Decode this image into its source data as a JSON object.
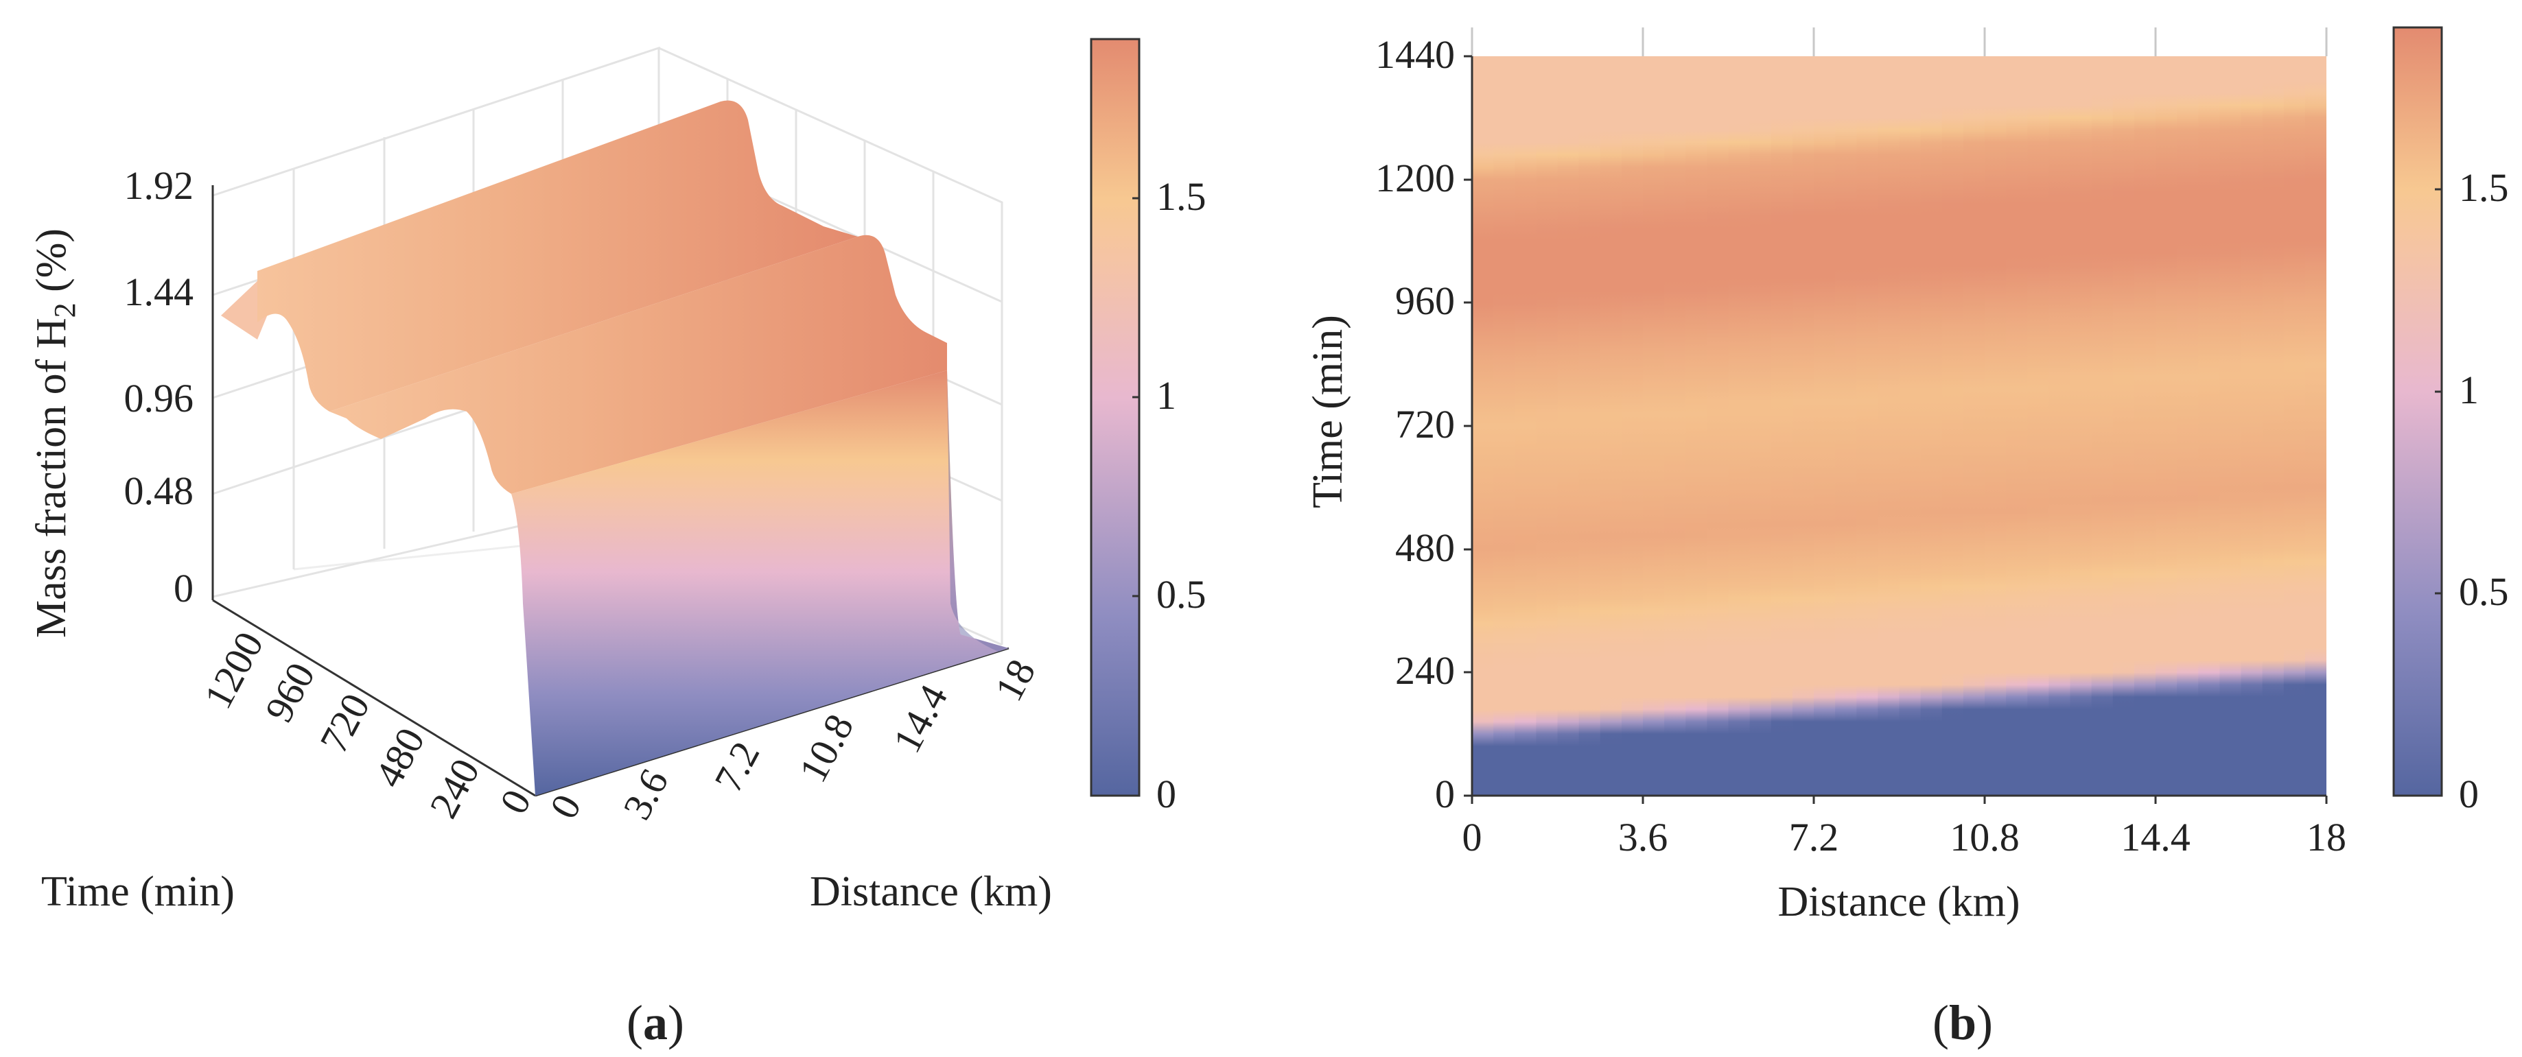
{
  "colormap": {
    "stops": [
      {
        "v": 0.0,
        "color": "#5566a0"
      },
      {
        "v": 0.45,
        "color": "#8f8dc1"
      },
      {
        "v": 1.0,
        "color": "#e8b8cf"
      },
      {
        "v": 1.35,
        "color": "#f5c4a4"
      },
      {
        "v": 1.5,
        "color": "#f7c891"
      },
      {
        "v": 1.9,
        "color": "#e38b70"
      }
    ],
    "range": [
      0,
      1.9
    ]
  },
  "chart_data": [
    {
      "id": "a",
      "panel_label": "(a)",
      "type": "surface3d",
      "xlabel": "Distance (km)",
      "ylabel": "Time (min)",
      "zlabel": "Mass fraction of H",
      "zlabel_sub": "2",
      "zlabel_suffix": " (%)",
      "x_ticks": [
        "0",
        "3.6",
        "7.2",
        "10.8",
        "14.4",
        "18"
      ],
      "y_ticks": [
        "0",
        "240",
        "480",
        "720",
        "960",
        "1200"
      ],
      "z_ticks": [
        "0",
        "0.48",
        "0.96",
        "1.44",
        "1.92"
      ],
      "colorbar_ticks": [
        "0",
        "0.5",
        "1",
        "1.5"
      ],
      "xlim": [
        0,
        18
      ],
      "ylim": [
        0,
        1440
      ],
      "zlim": [
        0,
        1.92
      ]
    },
    {
      "id": "b",
      "panel_label": "(b)",
      "type": "heatmap",
      "xlabel": "Distance (km)",
      "ylabel": "Time (min)",
      "x_ticks": [
        "0",
        "3.6",
        "7.2",
        "10.8",
        "14.4",
        "18"
      ],
      "y_ticks": [
        "0",
        "240",
        "480",
        "720",
        "960",
        "1200",
        "1440"
      ],
      "colorbar_ticks": [
        "0",
        "0.5",
        "1",
        "1.5"
      ],
      "xlim": [
        0,
        18
      ],
      "ylim": [
        0,
        1440
      ],
      "profile_time_min": [
        0,
        100,
        150,
        250,
        300,
        360,
        480,
        600,
        720,
        840,
        960,
        1080,
        1200,
        1260,
        1440
      ],
      "profile_value_pct": [
        0.0,
        0.0,
        1.35,
        1.35,
        1.4,
        1.55,
        1.7,
        1.62,
        1.55,
        1.68,
        1.85,
        1.85,
        1.7,
        1.35,
        1.35
      ],
      "front_shift_min": [
        0,
        120
      ]
    }
  ]
}
